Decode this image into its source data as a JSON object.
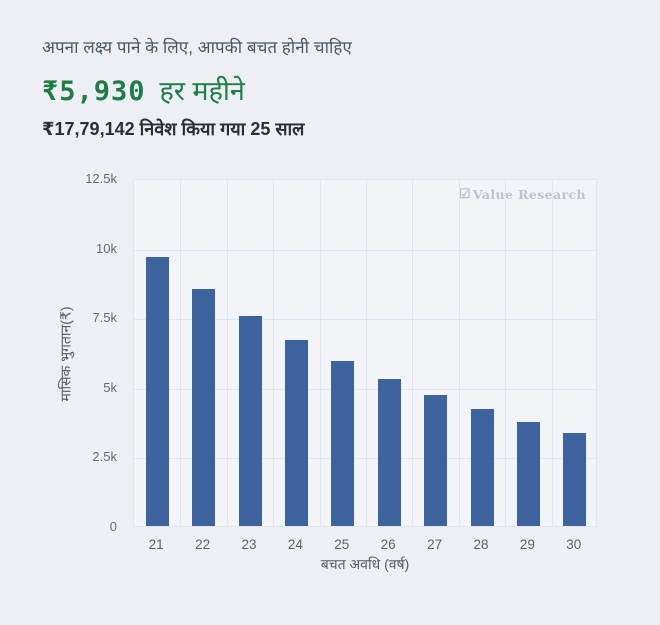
{
  "header": {
    "subtitle": "अपना लक्ष्य पाने के लिए, आपकी बचत होनी चाहिए",
    "amount": "₹5,930",
    "amount_suffix": "हर महीने",
    "invested_line": "₹17,79,142 निवेश किया गया 25 साल"
  },
  "colors": {
    "page_bg": "#edeff4",
    "plot_bg": "#f2f4f8",
    "grid": "#e3e6ec",
    "bar": "#3c639e",
    "accent_green": "#1e7c49",
    "watermark": "#bdc2cb"
  },
  "watermark": {
    "icon": "checkbox-logo",
    "label": "Value Research"
  },
  "chart_data": {
    "type": "bar",
    "title": "",
    "categories": [
      "21",
      "22",
      "23",
      "24",
      "25",
      "26",
      "27",
      "28",
      "29",
      "30"
    ],
    "values": [
      9660,
      8520,
      7550,
      6690,
      5930,
      5270,
      4700,
      4190,
      3720,
      3330
    ],
    "xlabel": "बचत अवधि (वर्ष)",
    "ylabel": "मासिक भुगतान(₹)",
    "ylim": [
      0,
      12500
    ],
    "yticks": [
      0,
      2500,
      5000,
      7500,
      10000,
      12500
    ],
    "ytick_labels": [
      "0",
      "2.5k",
      "5k",
      "7.5k",
      "10k",
      "12.5k"
    ],
    "grid": true,
    "legend": "Value Research",
    "legend_position": "top-right-inside",
    "bar_color": "#3c639e"
  }
}
